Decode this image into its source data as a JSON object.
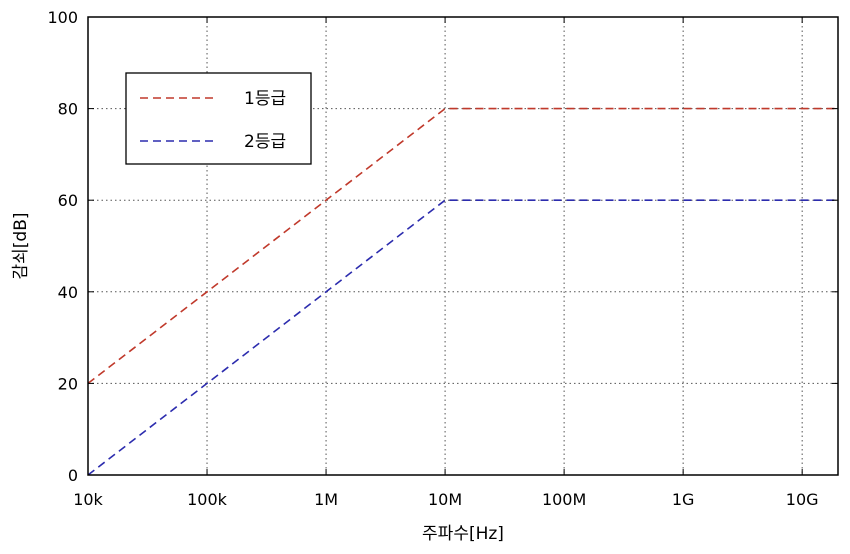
{
  "chart_data": {
    "type": "line",
    "xscale": "log",
    "xlabel": "주파수[Hz]",
    "ylabel": "감쇠[dB]",
    "xlim": [
      10000,
      20000000000
    ],
    "ylim": [
      0,
      100
    ],
    "x_ticks": [
      {
        "value": 10000,
        "label": "10k"
      },
      {
        "value": 100000,
        "label": "100k"
      },
      {
        "value": 1000000,
        "label": "1M"
      },
      {
        "value": 10000000,
        "label": "10M"
      },
      {
        "value": 100000000,
        "label": "100M"
      },
      {
        "value": 1000000000,
        "label": "1G"
      },
      {
        "value": 10000000000,
        "label": "10G"
      }
    ],
    "y_ticks": [
      0,
      20,
      40,
      60,
      80,
      100
    ],
    "grid": true,
    "legend_position": "top-left",
    "series": [
      {
        "name": "1등급",
        "color": "#c0392b",
        "style": "dashed",
        "x": [
          10000,
          10000000,
          20000000000
        ],
        "y": [
          20,
          80,
          80
        ]
      },
      {
        "name": "2등급",
        "color": "#2c2cae",
        "style": "dashed",
        "x": [
          10000,
          10000000,
          20000000000
        ],
        "y": [
          0,
          60,
          60
        ]
      }
    ]
  }
}
